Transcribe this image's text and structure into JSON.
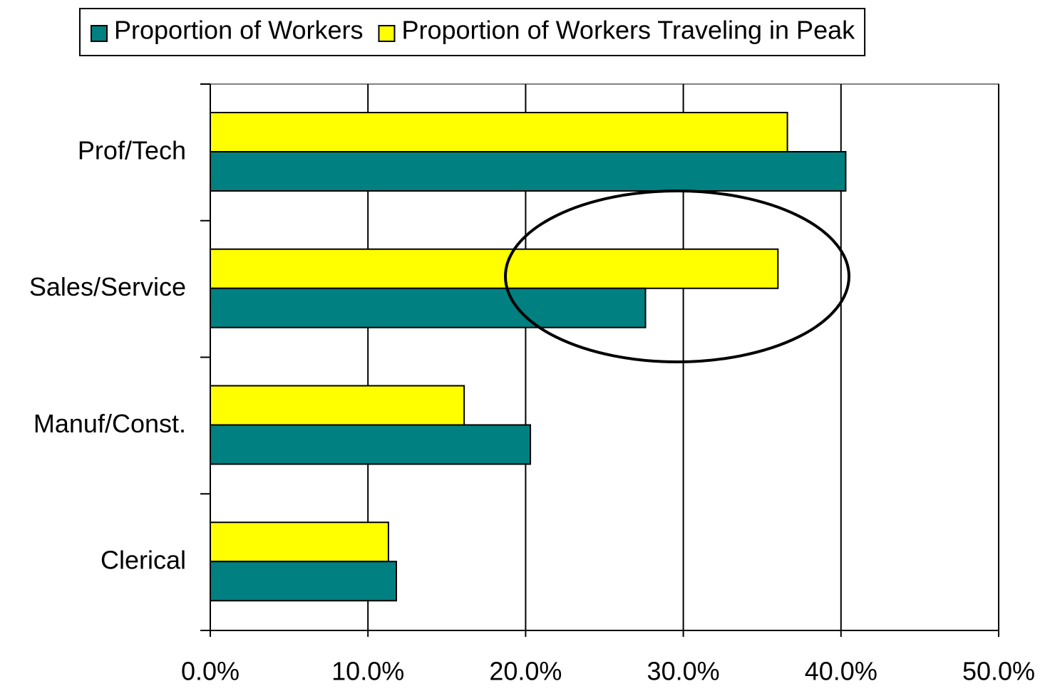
{
  "chart_data": {
    "type": "hbar",
    "categories": [
      "Prof/Tech",
      "Sales/Service",
      "Manuf/Const.",
      "Clerical"
    ],
    "series": [
      {
        "name": "Proportion of Workers",
        "color": "#008080",
        "values": [
          40.3,
          27.6,
          20.3,
          11.8
        ]
      },
      {
        "name": "Proportion of Workers Traveling in Peak",
        "color": "#ffff00",
        "values": [
          36.6,
          36.0,
          16.1,
          11.3
        ]
      }
    ],
    "xlim": [
      0,
      50
    ],
    "xticks": [
      {
        "value": 0,
        "label": "0.0%"
      },
      {
        "value": 10,
        "label": "10.0%"
      },
      {
        "value": 20,
        "label": "20.0%"
      },
      {
        "value": 30,
        "label": "30.0%"
      },
      {
        "value": 40,
        "label": "40.0%"
      },
      {
        "value": 50,
        "label": "50.0%"
      }
    ],
    "grid": true,
    "legend": "top"
  }
}
